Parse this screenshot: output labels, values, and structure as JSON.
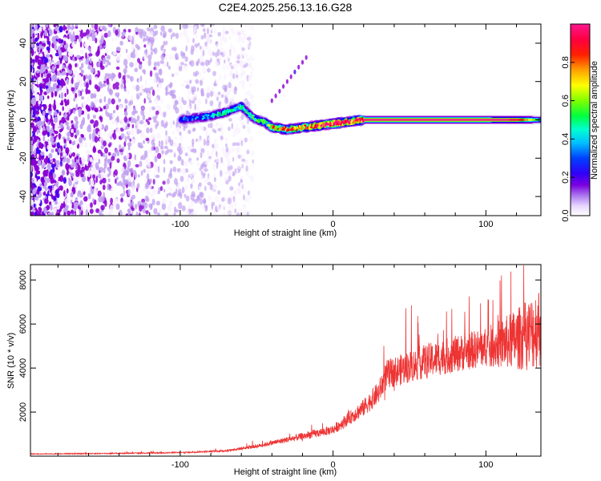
{
  "title": "C2E4.2025.256.13.16.G28",
  "chart_data": [
    {
      "type": "heatmap",
      "name": "spectrogram",
      "xlabel": "Height of straight line (km)",
      "ylabel": "Frequency (Hz)",
      "xlim": [
        -198,
        136
      ],
      "ylim": [
        -50,
        50
      ],
      "xticks": [
        -100,
        0,
        100
      ],
      "yticks": [
        -40,
        -20,
        0,
        20,
        40
      ],
      "colorbar": {
        "label": "Normalized spectral amplitude",
        "range": [
          0,
          1
        ],
        "ticks": [
          0.0,
          0.2,
          0.4,
          0.6,
          0.8
        ],
        "tick_labels": [
          "0.0",
          "0.2",
          "0.4",
          "0.6",
          "0.8"
        ],
        "colormap": "rainbow",
        "colors": [
          "#f8f0ff",
          "#c0a0f0",
          "#8a00d4",
          "#4400f0",
          "#0000ff",
          "#00aaff",
          "#00ffdd",
          "#00ff40",
          "#80ff00",
          "#ffff00",
          "#ff9000",
          "#ff0000",
          "#ff0050",
          "#ff1090"
        ]
      },
      "ridge": {
        "x": [
          -100,
          -90,
          -80,
          -70,
          -60,
          -55,
          -50,
          -45,
          -40,
          -30,
          -20,
          -10,
          0,
          10,
          20,
          60,
          100,
          120,
          136
        ],
        "frequency": [
          0,
          1,
          2,
          4,
          7,
          3,
          0,
          -1,
          -4,
          -5,
          -4,
          -3,
          -2,
          -1,
          0,
          0,
          0,
          0,
          0
        ],
        "amplitude": [
          0.3,
          0.35,
          0.4,
          0.45,
          0.5,
          0.45,
          0.5,
          0.55,
          0.7,
          0.75,
          0.8,
          0.85,
          0.9,
          0.95,
          1.0,
          1.0,
          1.0,
          0.95,
          0.5
        ]
      },
      "noise_region_x": [
        -198,
        -55
      ],
      "noise_frequency_range": [
        -50,
        50
      ]
    },
    {
      "type": "line",
      "name": "snr",
      "xlabel": "Height of straight line (km)",
      "ylabel": "SNR (10 * v/v)",
      "xlim": [
        -198,
        136
      ],
      "ylim": [
        0,
        8700
      ],
      "xticks": [
        -100,
        0,
        100
      ],
      "yticks": [
        2000,
        4000,
        6000,
        8000
      ],
      "color": "#ee3333",
      "trend": {
        "x": [
          -198,
          -150,
          -100,
          -70,
          -50,
          -40,
          -20,
          0,
          10,
          20,
          30,
          35,
          60,
          90,
          110,
          120,
          130,
          136
        ],
        "y": [
          100,
          120,
          160,
          250,
          450,
          600,
          900,
          1200,
          1700,
          2200,
          2900,
          3700,
          4300,
          4800,
          5100,
          5300,
          5600,
          6000
        ]
      }
    }
  ]
}
